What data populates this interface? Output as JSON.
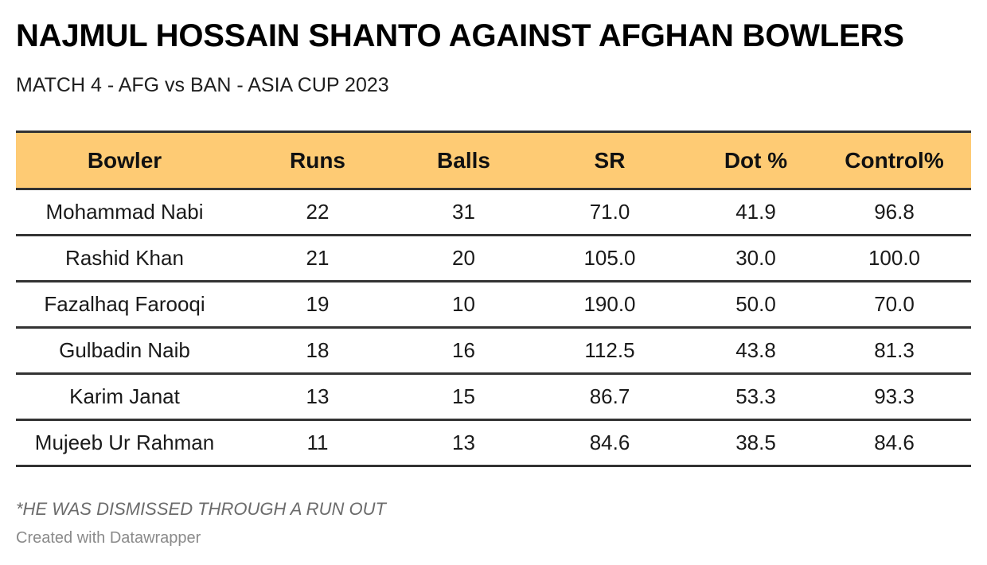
{
  "title": "NAJMUL HOSSAIN SHANTO AGAINST AFGHAN BOWLERS",
  "subtitle": "MATCH 4 - AFG vs BAN - ASIA CUP 2023",
  "colors": {
    "header_background": "#fecb74",
    "row_border": "#333333"
  },
  "chart_data": {
    "type": "table",
    "columns": [
      "Bowler",
      "Runs",
      "Balls",
      "SR",
      "Dot %",
      "Control%"
    ],
    "rows": [
      [
        "Mohammad Nabi",
        "22",
        "31",
        "71.0",
        "41.9",
        "96.8"
      ],
      [
        "Rashid Khan",
        "21",
        "20",
        "105.0",
        "30.0",
        "100.0"
      ],
      [
        "Fazalhaq Farooqi",
        "19",
        "10",
        "190.0",
        "50.0",
        "70.0"
      ],
      [
        "Gulbadin Naib",
        "18",
        "16",
        "112.5",
        "43.8",
        "81.3"
      ],
      [
        "Karim Janat",
        "13",
        "15",
        "86.7",
        "53.3",
        "93.3"
      ],
      [
        "Mujeeb Ur Rahman",
        "11",
        "13",
        "84.6",
        "38.5",
        "84.6"
      ]
    ]
  },
  "footnote": "*HE WAS DISMISSED THROUGH A RUN OUT",
  "credit": "Created with Datawrapper"
}
